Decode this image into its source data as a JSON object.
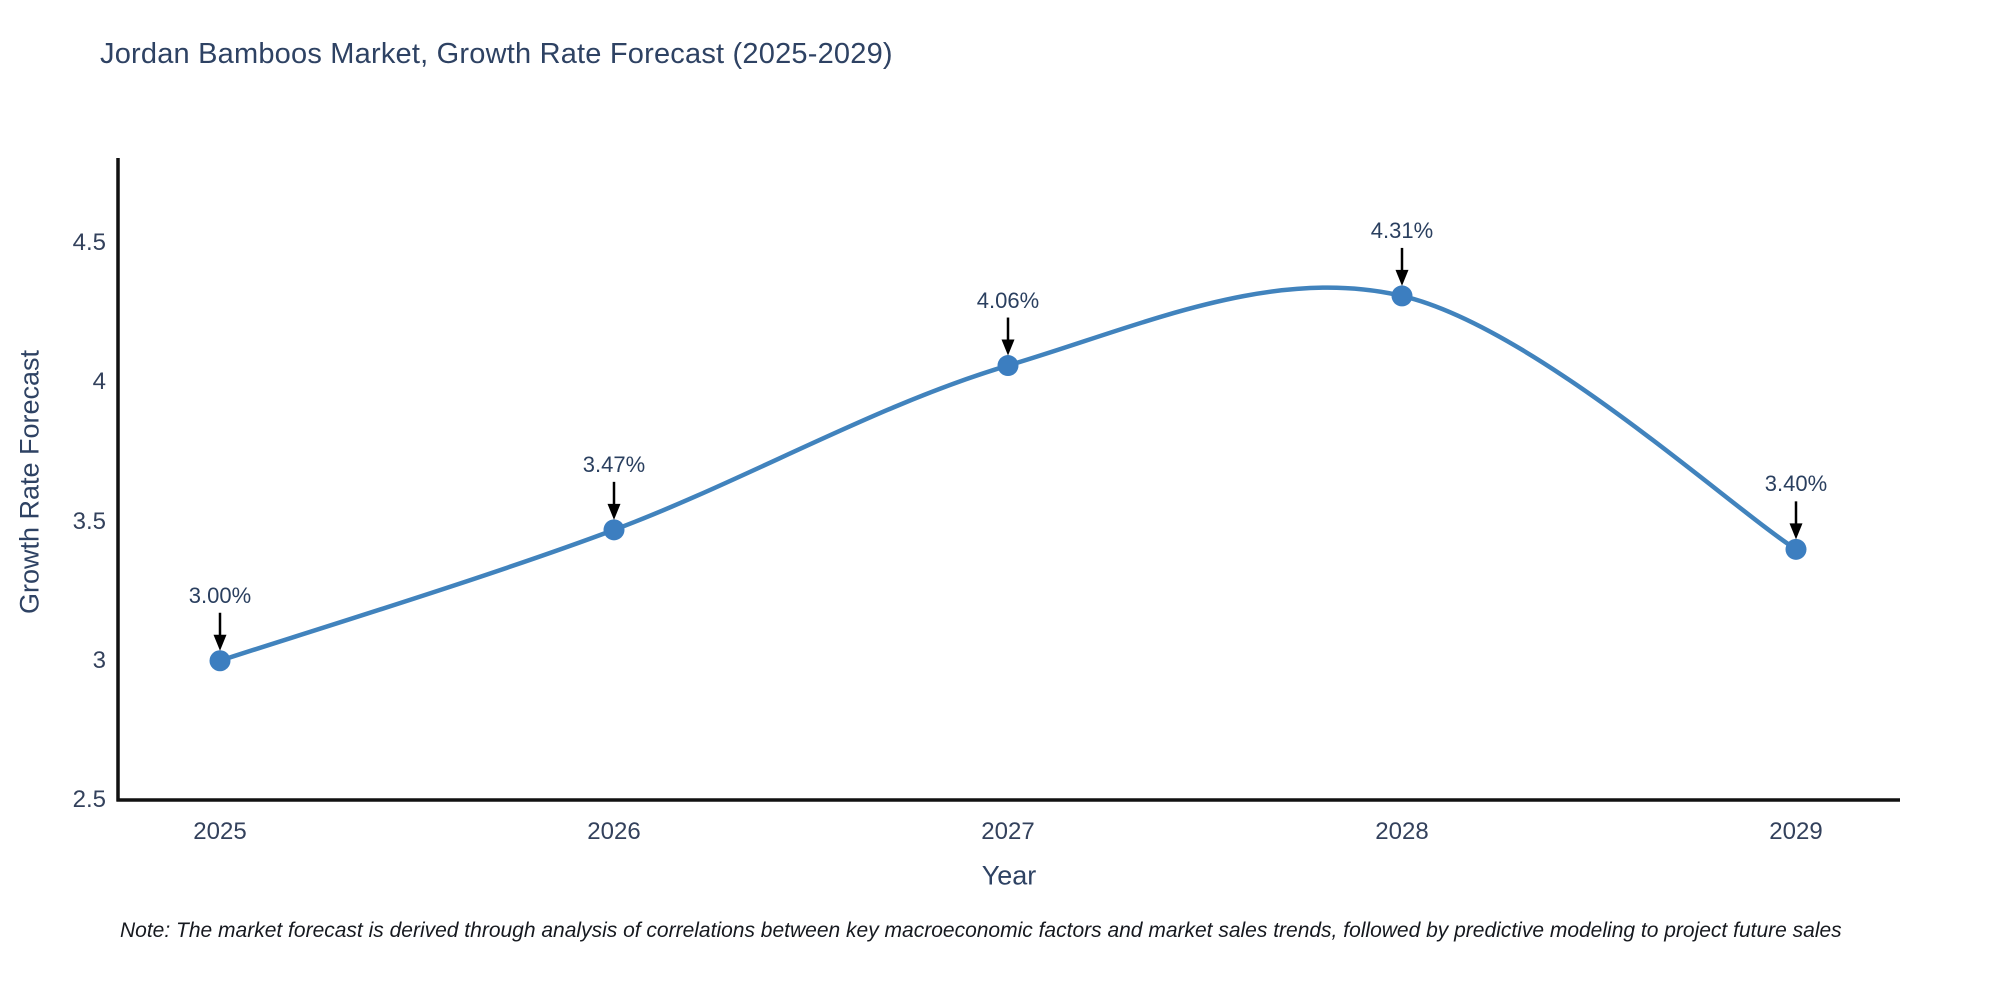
{
  "note": "Note: The market forecast is derived through analysis of correlations between key macroeconomic factors and market sales trends, followed by predictive modeling to project future sales",
  "chart_data": {
    "type": "line",
    "line_shape": "spline",
    "title": "Jordan Bamboos Market, Growth Rate Forecast (2025-2029)",
    "xlabel": "Year",
    "ylabel": "Growth Rate Forecast",
    "categories": [
      "2025",
      "2026",
      "2027",
      "2028",
      "2029"
    ],
    "values": [
      3.0,
      3.47,
      4.06,
      4.31,
      3.4
    ],
    "point_labels": [
      "3.00%",
      "3.47%",
      "4.06%",
      "4.31%",
      "3.40%"
    ],
    "y_tick_labels": [
      "2.5",
      "3",
      "3.5",
      "4",
      "4.5"
    ],
    "y_tick_values": [
      2.5,
      3,
      3.5,
      4,
      4.5
    ],
    "ylim": [
      2.5,
      4.81
    ],
    "grid": false,
    "legend_position": "none",
    "annotation_style": "down-arrow",
    "colors": {
      "line": "#4183bd",
      "marker": "#3c7ec0",
      "arrow": "#000000",
      "text": "#2a3f5f",
      "axis": "#111111"
    }
  }
}
